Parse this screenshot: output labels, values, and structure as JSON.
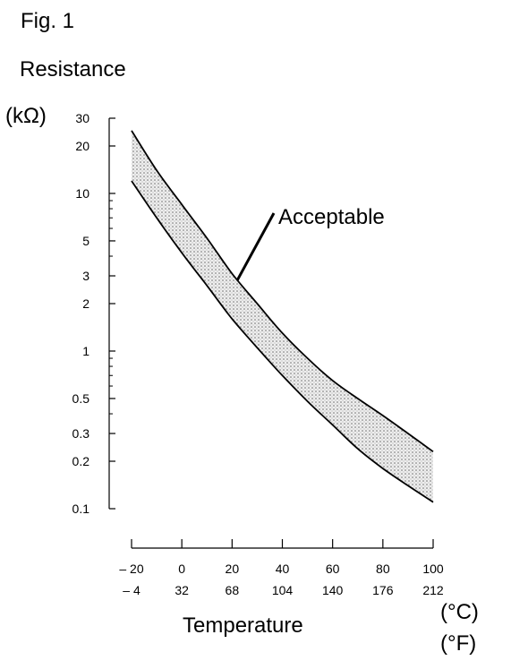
{
  "figure_label": "Fig. 1",
  "chart_data": {
    "type": "line",
    "title": "Fig. 1",
    "ylabel": "Resistance",
    "yunit": "(kΩ)",
    "xlabel": "Temperature",
    "xunit_primary": "(°C)",
    "xunit_secondary": "(°F)",
    "yscale": "log",
    "ylim": [
      0.1,
      30
    ],
    "xlim": [
      -20,
      100
    ],
    "y_ticks": [
      {
        "value": 30,
        "label": "30"
      },
      {
        "value": 20,
        "label": "20"
      },
      {
        "value": 10,
        "label": "10"
      },
      {
        "value": 5,
        "label": "5"
      },
      {
        "value": 3,
        "label": "3"
      },
      {
        "value": 2,
        "label": "2"
      },
      {
        "value": 1,
        "label": "1"
      },
      {
        "value": 0.5,
        "label": "0.5"
      },
      {
        "value": 0.3,
        "label": "0.3"
      },
      {
        "value": 0.2,
        "label": "0.2"
      },
      {
        "value": 0.1,
        "label": "0.1"
      }
    ],
    "x_ticks": [
      {
        "value": -20,
        "label_c": "– 20",
        "label_f": "– 4"
      },
      {
        "value": 0,
        "label_c": "0",
        "label_f": "32"
      },
      {
        "value": 20,
        "label_c": "20",
        "label_f": "68"
      },
      {
        "value": 40,
        "label_c": "40",
        "label_f": "104"
      },
      {
        "value": 60,
        "label_c": "60",
        "label_f": "140"
      },
      {
        "value": 80,
        "label_c": "80",
        "label_f": "176"
      },
      {
        "value": 100,
        "label_c": "100",
        "label_f": "212"
      }
    ],
    "series": [
      {
        "role": "upper",
        "x": [
          -20,
          -10,
          0,
          10,
          20,
          30,
          40,
          50,
          60,
          70,
          80,
          90,
          100
        ],
        "values": [
          25,
          14,
          8.5,
          5.2,
          3.1,
          2.0,
          1.3,
          0.9,
          0.65,
          0.5,
          0.39,
          0.3,
          0.23
        ]
      },
      {
        "role": "lower",
        "x": [
          -20,
          -10,
          0,
          10,
          20,
          30,
          40,
          50,
          60,
          70,
          80,
          90,
          100
        ],
        "values": [
          12,
          7,
          4.2,
          2.6,
          1.6,
          1.05,
          0.7,
          0.48,
          0.34,
          0.24,
          0.18,
          0.14,
          0.11
        ]
      }
    ],
    "band_label": "Acceptable",
    "band_label_pointer": {
      "x": 22,
      "y": 2.8
    },
    "grid": false,
    "legend": "none"
  }
}
